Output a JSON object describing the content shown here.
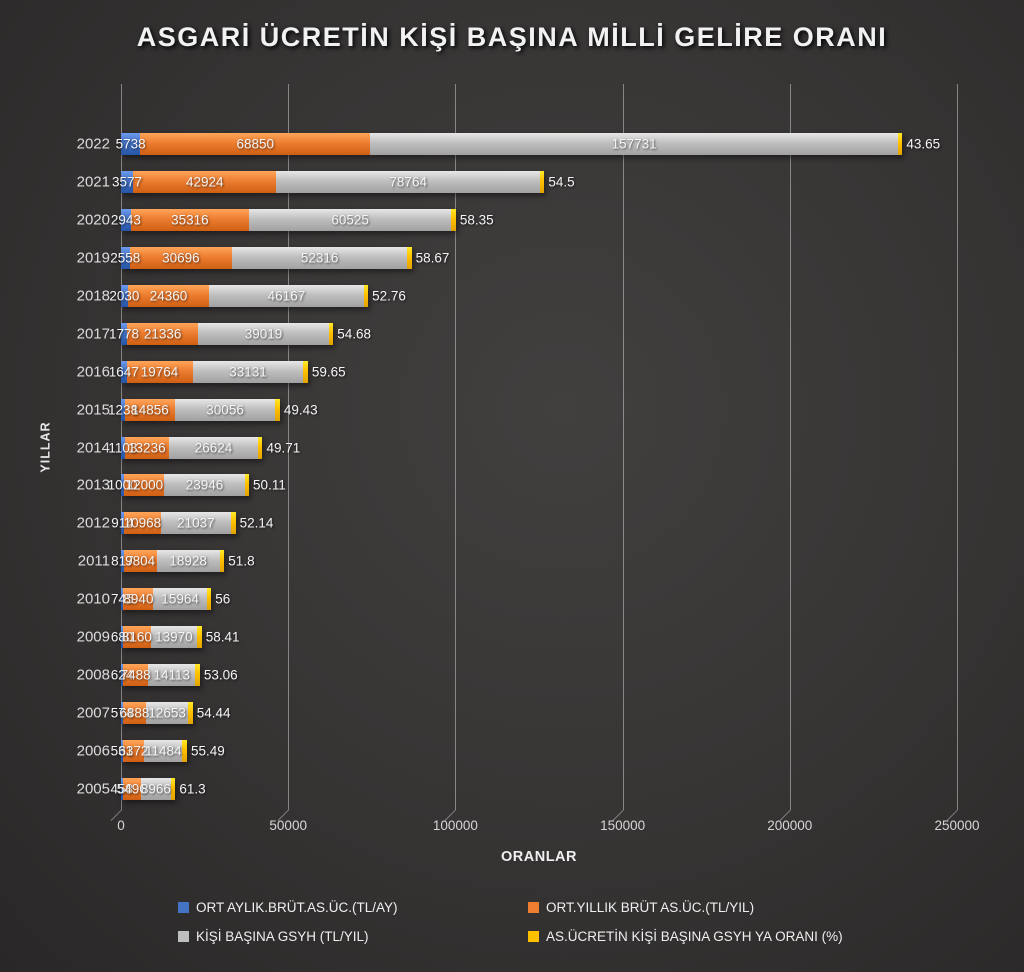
{
  "title": "ASGARİ ÜCRETİN KİŞİ BAŞINA MİLLİ GELİRE ORANI",
  "x_axis": {
    "label": "ORANLAR",
    "ticks": [
      0,
      50000,
      100000,
      150000,
      200000,
      250000
    ]
  },
  "y_axis": {
    "label": "YILLAR"
  },
  "colors": {
    "monthly_wage": "#4472C4",
    "yearly_wage": "#ED7D31",
    "gdp_per_capita": "#BFBFBF",
    "ratio": "#FFC000"
  },
  "legend": [
    {
      "label": "ORT AYLIK.BRÜT.AS.ÜC.(TL/AY)",
      "color": "#4472C4"
    },
    {
      "label": "ORT.YILLIK BRÜT AS.ÜC.(TL/YIL)",
      "color": "#ED7D31"
    },
    {
      "label": "KİŞİ BAŞINA GSYH (TL/YIL)",
      "color": "#BFBFBF"
    },
    {
      "label": "AS.ÜCRETİN KİŞİ BAŞINA GSYH YA ORANI (%)",
      "color": "#FFC000"
    }
  ],
  "chart_data": {
    "type": "bar",
    "orientation": "horizontal-stacked",
    "title": "ASGARİ ÜCRETİN KİŞİ BAŞINA MİLLİ GELİRE ORANI",
    "xlabel": "ORANLAR",
    "ylabel": "YILLAR",
    "xlim": [
      0,
      250000
    ],
    "grid": true,
    "legend_position": "bottom",
    "categories": [
      "2022",
      "2021",
      "2020",
      "2019",
      "2018",
      "2017",
      "2016",
      "2015",
      "2014",
      "2013",
      "2012",
      "2011",
      "2010",
      "2009",
      "2008",
      "2007",
      "2006",
      "2005"
    ],
    "series": [
      {
        "name": "ORT AYLIK.BRÜT.AS.ÜC.(TL/AY)",
        "color": "#4472C4",
        "values": [
          5738,
          3577,
          2943,
          2558,
          2030,
          1778,
          1647,
          1238,
          1103,
          1000,
          914,
          817,
          745,
          680,
          624,
          574,
          531,
          458
        ]
      },
      {
        "name": "ORT.YILLIK BRÜT AS.ÜC.(TL/YIL)",
        "color": "#ED7D31",
        "values": [
          68850,
          42924,
          35316,
          30696,
          24360,
          21336,
          19764,
          14856,
          13236,
          12000,
          10968,
          9804,
          8940,
          8160,
          7488,
          6888,
          6372,
          5496
        ]
      },
      {
        "name": "KİŞİ BAŞINA GSYH (TL/YIL)",
        "color": "#BFBFBF",
        "values": [
          157731,
          78764,
          60525,
          52316,
          46167,
          39019,
          33131,
          30056,
          26624,
          23946,
          21037,
          18928,
          15964,
          13970,
          14113,
          12653,
          11484,
          8966
        ]
      },
      {
        "name": "AS.ÜCRETİN KİŞİ BAŞINA GSYH YA ORANI (%)",
        "color": "#FFC000",
        "values": [
          43.65,
          54.5,
          58.35,
          58.67,
          52.76,
          54.68,
          59.65,
          49.43,
          49.71,
          50.11,
          52.14,
          51.8,
          56,
          58.41,
          53.06,
          54.44,
          55.49,
          61.3
        ]
      }
    ]
  }
}
